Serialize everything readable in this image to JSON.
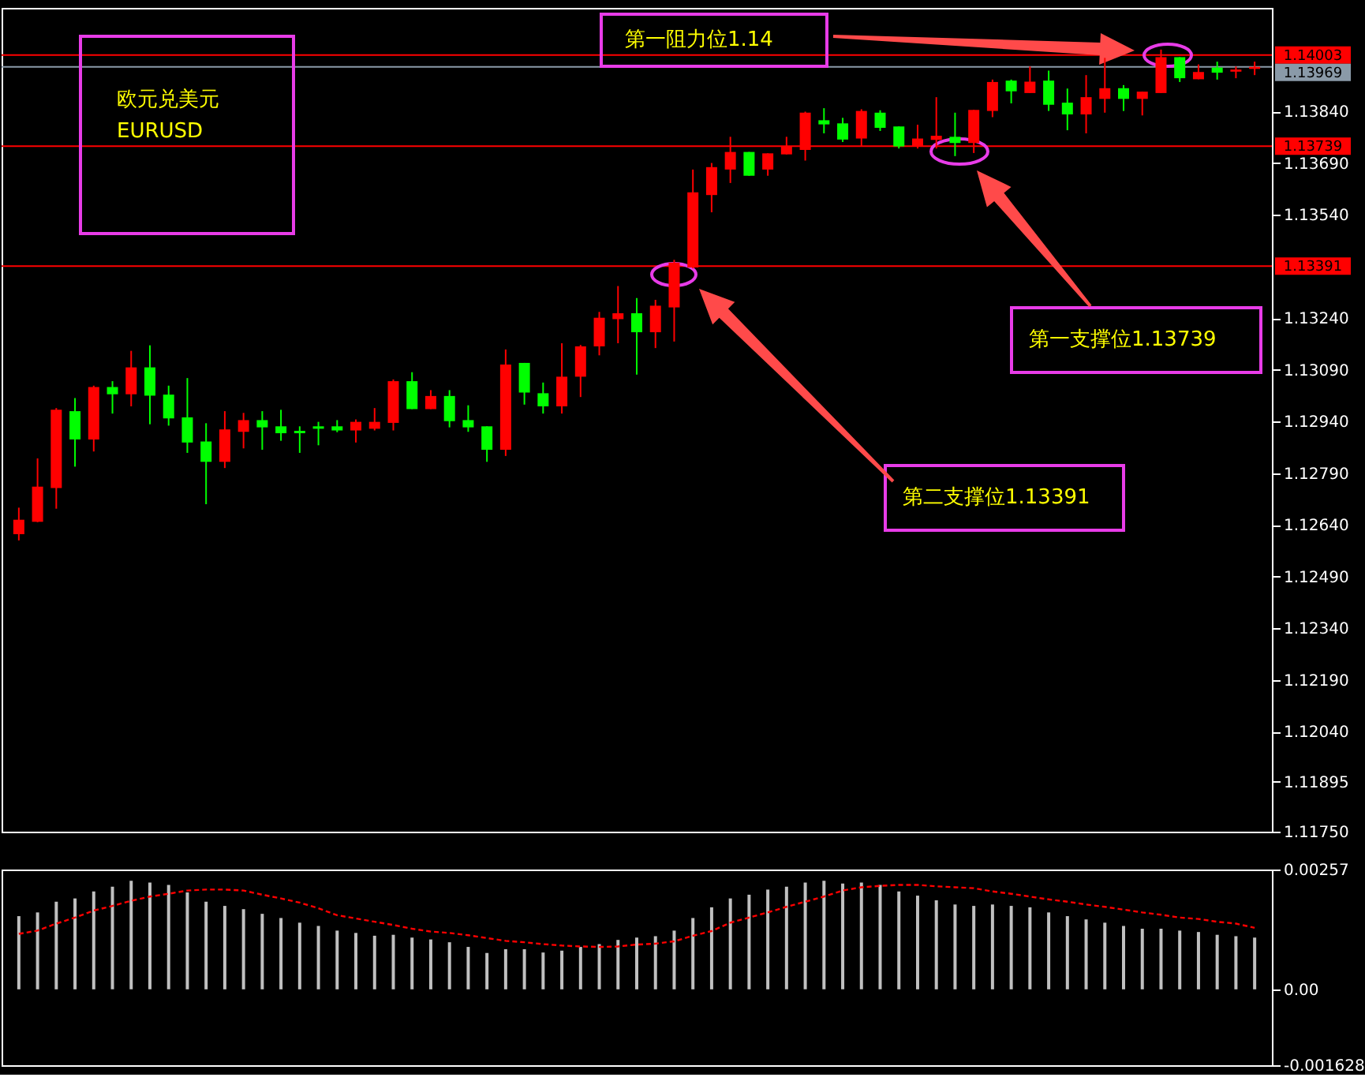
{
  "chart_data": [
    {
      "type": "candlestick",
      "tick_labels": "y",
      "legend": false,
      "categories": [
        null,
        null,
        null,
        null,
        null,
        null,
        null,
        null,
        null,
        null,
        null,
        null,
        null,
        null,
        null,
        null,
        null,
        null,
        null,
        null,
        null,
        null,
        null,
        null,
        null,
        null,
        null,
        null,
        null,
        null,
        null,
        null,
        null,
        null,
        null,
        null,
        null,
        null,
        null,
        null,
        null,
        null,
        null,
        null,
        null,
        null,
        null,
        null,
        null,
        null,
        null,
        null,
        null,
        null,
        null,
        null,
        null,
        null,
        null,
        null,
        null,
        null,
        null,
        null,
        null,
        null,
        null
      ],
      "ohlc": [
        [
          1.12613,
          1.1269,
          1.12595,
          1.12655
        ],
        [
          1.12649,
          1.12833,
          1.12648,
          1.12751
        ],
        [
          1.12747,
          1.12979,
          1.12687,
          1.12974
        ],
        [
          1.1297,
          1.13008,
          1.12809,
          1.12888
        ],
        [
          1.12888,
          1.13044,
          1.12853,
          1.1304
        ],
        [
          1.1304,
          1.13057,
          1.12963,
          1.13019
        ],
        [
          1.13019,
          1.13145,
          1.12984,
          1.13097
        ],
        [
          1.13097,
          1.13161,
          1.12932,
          1.13015
        ],
        [
          1.13018,
          1.13044,
          1.12928,
          1.12949
        ],
        [
          1.12952,
          1.13066,
          1.12849,
          1.12879
        ],
        [
          1.12882,
          1.12935,
          1.127,
          1.12823
        ],
        [
          1.12823,
          1.1297,
          1.12805,
          1.12917
        ],
        [
          1.1291,
          1.12965,
          1.12862,
          1.12944
        ],
        [
          1.12944,
          1.1297,
          1.12858,
          1.12923
        ],
        [
          1.12926,
          1.12974,
          1.12884,
          1.12906
        ],
        [
          1.12913,
          1.12926,
          1.12849,
          1.12906
        ],
        [
          1.12926,
          1.12939,
          1.12871,
          1.12919
        ],
        [
          1.12926,
          1.12944,
          1.12909,
          1.12914
        ],
        [
          1.12914,
          1.12946,
          1.12879,
          1.12939
        ],
        [
          1.12919,
          1.12979,
          1.12914,
          1.12939
        ],
        [
          1.12936,
          1.13062,
          1.12914,
          1.13057
        ],
        [
          1.13057,
          1.13083,
          1.12976,
          1.12976
        ],
        [
          1.12976,
          1.13031,
          1.12976,
          1.13014
        ],
        [
          1.13014,
          1.13031,
          1.12923,
          1.12941
        ],
        [
          1.12944,
          1.12987,
          1.1291,
          1.12923
        ],
        [
          1.12926,
          1.12926,
          1.12823,
          1.12858
        ],
        [
          1.12858,
          1.13149,
          1.1284,
          1.13105
        ],
        [
          1.1311,
          1.1311,
          1.12989,
          1.13024
        ],
        [
          1.13022,
          1.13053,
          1.12963,
          1.12984
        ],
        [
          1.12984,
          1.13167,
          1.12963,
          1.1307
        ],
        [
          1.1307,
          1.13162,
          1.13011,
          1.13158
        ],
        [
          1.13158,
          1.13258,
          1.13132,
          1.13241
        ],
        [
          1.13237,
          1.13333,
          1.13167,
          1.13254
        ],
        [
          1.13254,
          1.13298,
          1.13076,
          1.13199
        ],
        [
          1.13199,
          1.13293,
          1.13153,
          1.13276
        ],
        [
          1.13271,
          1.13409,
          1.13172,
          1.13401
        ],
        [
          1.13387,
          1.13671,
          1.13384,
          1.13605
        ],
        [
          1.13597,
          1.1369,
          1.13547,
          1.13678
        ],
        [
          1.13671,
          1.13766,
          1.13632,
          1.13722
        ],
        [
          1.13722,
          1.13722,
          1.13653,
          1.13653
        ],
        [
          1.13671,
          1.13718,
          1.13653,
          1.13718
        ],
        [
          1.13715,
          1.13766,
          1.13715,
          1.13738
        ],
        [
          1.13728,
          1.13839,
          1.13697,
          1.13836
        ],
        [
          1.13814,
          1.13849,
          1.13776,
          1.13802
        ],
        [
          1.13805,
          1.13821,
          1.13751,
          1.13758
        ],
        [
          1.13761,
          1.13846,
          1.13738,
          1.13841
        ],
        [
          1.13836,
          1.13843,
          1.13783,
          1.13792
        ],
        [
          1.13796,
          1.13796,
          1.13732,
          1.13738
        ],
        [
          1.13738,
          1.13801,
          1.13732,
          1.13761
        ],
        [
          1.13757,
          1.13881,
          1.13732,
          1.13769
        ],
        [
          1.13766,
          1.13836,
          1.1371,
          1.13748
        ],
        [
          1.13748,
          1.13844,
          1.13719,
          1.13844
        ],
        [
          1.13841,
          1.13932,
          1.13823,
          1.13925
        ],
        [
          1.13929,
          1.13932,
          1.13863,
          1.13898
        ],
        [
          1.13893,
          1.1397,
          1.13893,
          1.13926
        ],
        [
          1.13929,
          1.13958,
          1.13841,
          1.13859
        ],
        [
          1.13865,
          1.13906,
          1.13785,
          1.13831
        ],
        [
          1.13831,
          1.13945,
          1.13776,
          1.13881
        ],
        [
          1.13876,
          1.13995,
          1.13836,
          1.13907
        ],
        [
          1.13907,
          1.13916,
          1.13841,
          1.13876
        ],
        [
          1.13876,
          1.13897,
          1.13828,
          1.13897
        ],
        [
          1.13893,
          1.14019,
          1.13893,
          1.13997
        ],
        [
          1.13997,
          1.13997,
          1.13925,
          1.13936
        ],
        [
          1.13933,
          1.13976,
          1.13933,
          1.13954
        ],
        [
          1.13967,
          1.13984,
          1.13932,
          1.13952
        ],
        [
          1.13955,
          1.1397,
          1.13936,
          1.13961
        ],
        [
          1.13963,
          1.13984,
          1.13945,
          1.13969
        ]
      ],
      "colors": [
        "#ff0000",
        "#ff0000",
        "#ff0000",
        "#00ff00",
        "#ff0000",
        "#00ff00",
        "#ff0000",
        "#00ff00",
        "#00ff00",
        "#00ff00",
        "#00ff00",
        "#ff0000",
        "#ff0000",
        "#00ff00",
        "#00ff00",
        "#00ff00",
        "#00ff00",
        "#00ff00",
        "#ff0000",
        "#ff0000",
        "#ff0000",
        "#00ff00",
        "#ff0000",
        "#00ff00",
        "#00ff00",
        "#00ff00",
        "#ff0000",
        "#00ff00",
        "#00ff00",
        "#ff0000",
        "#ff0000",
        "#ff0000",
        "#ff0000",
        "#00ff00",
        "#ff0000",
        "#ff0000",
        "#ff0000",
        "#ff0000",
        "#ff0000",
        "#00ff00",
        "#ff0000",
        "#ff0000",
        "#ff0000",
        "#00ff00",
        "#00ff00",
        "#ff0000",
        "#00ff00",
        "#00ff00",
        "#ff0000",
        "#ff0000",
        "#00ff00",
        "#ff0000",
        "#ff0000",
        "#00ff00",
        "#ff0000",
        "#00ff00",
        "#00ff00",
        "#ff0000",
        "#ff0000",
        "#00ff00",
        "#ff0000",
        "#ff0000",
        "#00ff00",
        "#ff0000",
        "#00ff00",
        "#ff0000",
        "#ff0000"
      ],
      "ylim": [
        1.1175,
        1.1414
      ],
      "yticks": [
        {
          "value": 1.1384,
          "label": "1.13840"
        },
        {
          "value": 1.1369,
          "label": "1.13690"
        },
        {
          "value": 1.1354,
          "label": "1.13540"
        },
        {
          "value": 1.1324,
          "label": "1.13240"
        },
        {
          "value": 1.1309,
          "label": "1.13090"
        },
        {
          "value": 1.1294,
          "label": "1.12940"
        },
        {
          "value": 1.1279,
          "label": "1.12790"
        },
        {
          "value": 1.1264,
          "label": "1.12640"
        },
        {
          "value": 1.1249,
          "label": "1.12490"
        },
        {
          "value": 1.1234,
          "label": "1.12340"
        },
        {
          "value": 1.1219,
          "label": "1.12190"
        },
        {
          "value": 1.1204,
          "label": "1.12040"
        },
        {
          "value": 1.11895,
          "label": "1.11895"
        },
        {
          "value": 1.1175,
          "label": "1.11750"
        }
      ],
      "ref_lines": [
        {
          "axis": "y",
          "value": 1.14003,
          "label": "1.14003",
          "color": "#ff0000"
        },
        {
          "axis": "y",
          "value": 1.13969,
          "label": "1.13969",
          "color": "#8a9aa8"
        },
        {
          "axis": "y",
          "value": 1.13739,
          "label": "1.13739",
          "color": "#ff0000"
        },
        {
          "axis": "y",
          "value": 1.13391,
          "label": "1.13391",
          "color": "#ff0000"
        }
      ],
      "annotations": [
        "欧元兑美元",
        "EURUSD",
        "第一阻力位1.14",
        "第一支撑位1.13739",
        "第二支撑位1.13391"
      ]
    },
    {
      "type": "bar",
      "tick_labels": "y",
      "legend": false,
      "marker": "none",
      "categories": [
        null,
        null,
        null,
        null,
        null,
        null,
        null,
        null,
        null,
        null,
        null,
        null,
        null,
        null,
        null,
        null,
        null,
        null,
        null,
        null,
        null,
        null,
        null,
        null,
        null,
        null,
        null,
        null,
        null,
        null,
        null,
        null,
        null,
        null,
        null,
        null,
        null,
        null,
        null,
        null,
        null,
        null,
        null,
        null,
        null,
        null,
        null,
        null,
        null,
        null,
        null,
        null,
        null,
        null,
        null,
        null,
        null,
        null,
        null,
        null,
        null,
        null,
        null,
        null,
        null,
        null,
        null
      ],
      "ylim": [
        -0.001628,
        0.00257
      ],
      "yticks": [
        {
          "value": 0.00257,
          "label": "0.00257"
        },
        {
          "value": 0,
          "label": "0.00"
        },
        {
          "value": -0.001628,
          "label": "-0.001628"
        }
      ],
      "series": [
        {
          "type": "bar",
          "color": "#c0c0c0",
          "values": [
            0.00157,
            0.00165,
            0.00188,
            0.00195,
            0.0021,
            0.0022,
            0.00233,
            0.00229,
            0.00224,
            0.00208,
            0.00188,
            0.00179,
            0.00172,
            0.00162,
            0.00153,
            0.00143,
            0.00136,
            0.00126,
            0.00121,
            0.00115,
            0.00117,
            0.00111,
            0.00107,
            0.00101,
            0.00091,
            0.00078,
            0.00086,
            0.00086,
            0.00079,
            0.00083,
            0.00091,
            0.00097,
            0.00106,
            0.00111,
            0.00114,
            0.00126,
            0.00153,
            0.00176,
            0.00195,
            0.00203,
            0.00214,
            0.0022,
            0.00229,
            0.00233,
            0.00227,
            0.00229,
            0.00224,
            0.0021,
            0.00201,
            0.00191,
            0.00182,
            0.00179,
            0.00182,
            0.00179,
            0.00176,
            0.00165,
            0.00157,
            0.0015,
            0.00143,
            0.00136,
            0.0013,
            0.0013,
            0.00126,
            0.00123,
            0.00117,
            0.00114,
            0.00111
          ]
        },
        {
          "type": "line",
          "color": "#ff0000",
          "line_style": "dashed",
          "values": [
            0.00119,
            0.00126,
            0.00141,
            0.00154,
            0.00169,
            0.00179,
            0.0019,
            0.00199,
            0.00205,
            0.00212,
            0.00214,
            0.00214,
            0.00212,
            0.00203,
            0.00195,
            0.00186,
            0.00174,
            0.00159,
            0.00152,
            0.00145,
            0.00138,
            0.0013,
            0.00124,
            0.00121,
            0.00116,
            0.0011,
            0.00104,
            0.00101,
            0.00097,
            0.00094,
            0.00092,
            0.00091,
            0.00092,
            0.00096,
            0.00098,
            0.00103,
            0.00115,
            0.00125,
            0.00143,
            0.00154,
            0.00165,
            0.00177,
            0.00188,
            0.00199,
            0.00212,
            0.00219,
            0.00222,
            0.00224,
            0.00224,
            0.00221,
            0.00219,
            0.00217,
            0.0021,
            0.00205,
            0.00199,
            0.00193,
            0.00188,
            0.00182,
            0.00177,
            0.00171,
            0.00165,
            0.0016,
            0.00154,
            0.00151,
            0.00145,
            0.00141,
            0.00132
          ]
        }
      ]
    }
  ]
}
